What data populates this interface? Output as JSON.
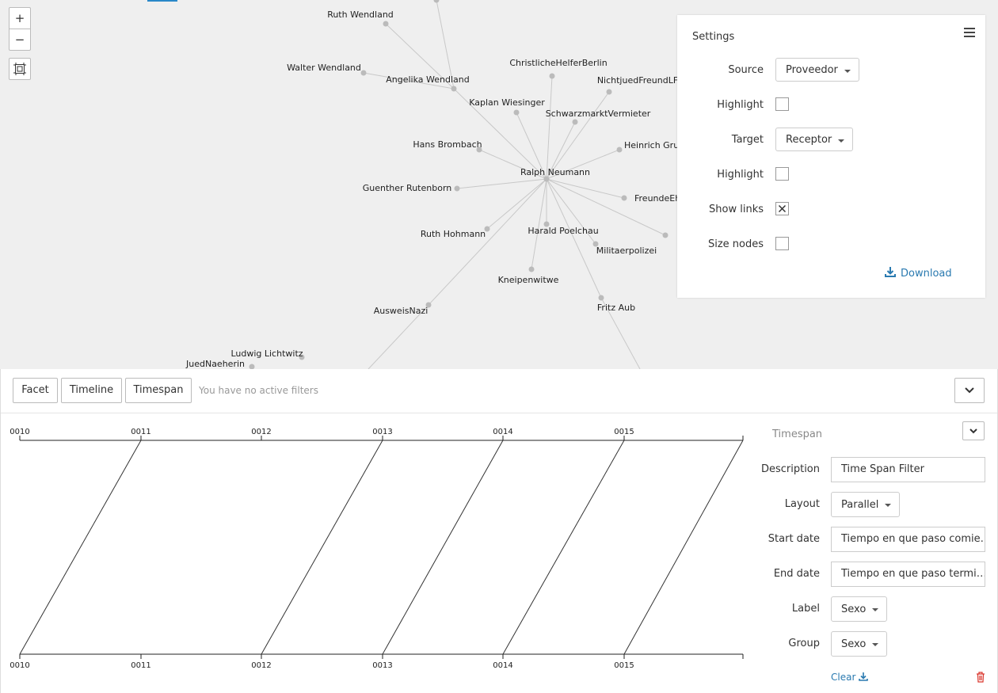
{
  "graph": {
    "nodes": [
      "Ruth Wendland",
      "Walter Wendland",
      "Angelika Wendland",
      "ChristlicheHelferBerlin",
      "NichtjuedFreundLF",
      "Kaplan Wiesinger",
      "SchwarzmarktVermieter",
      "Hans Brombach",
      "Heinrich Gruen",
      "Ralph Neumann",
      "Guenther Rutenborn",
      "FreundeEhepaarWohnung",
      "Ruth Hohmann",
      "Harald Poelchau",
      "Militaerpolizei",
      "Kneipenwitwe",
      "Fritz Aub",
      "AusweisNazi",
      "Ludwig Lichtwitz",
      "JuedNaeherin"
    ]
  },
  "zoom": {
    "in": "+",
    "out": "−"
  },
  "settings": {
    "title": "Settings",
    "rows": [
      {
        "label": "Source",
        "kind": "select",
        "value": "Proveedor"
      },
      {
        "label": "Highlight",
        "kind": "checkbox",
        "checked": false
      },
      {
        "label": "Target",
        "kind": "select",
        "value": "Receptor"
      },
      {
        "label": "Highlight",
        "kind": "checkbox",
        "checked": false
      },
      {
        "label": "Show links",
        "kind": "checkbox",
        "checked": true
      },
      {
        "label": "Size nodes",
        "kind": "checkbox",
        "checked": false
      }
    ],
    "download": "Download"
  },
  "filter_bar": {
    "buttons": [
      "Facet",
      "Timeline",
      "Timespan"
    ],
    "status": "You have no active filters"
  },
  "timeline": {
    "top_ticks": [
      "0010",
      "0011",
      "0012",
      "0013",
      "0014",
      "0015"
    ],
    "bottom_ticks": [
      "0010",
      "0011",
      "0012",
      "0013",
      "0014",
      "0015"
    ]
  },
  "timespan_panel": {
    "title": "Timespan",
    "fields": [
      {
        "label": "Description",
        "kind": "input",
        "value": "Time Span Filter"
      },
      {
        "label": "Layout",
        "kind": "select",
        "value": "Parallel"
      },
      {
        "label": "Start date",
        "kind": "input",
        "value": "Tiempo en que paso comie…"
      },
      {
        "label": "End date",
        "kind": "input",
        "value": "Tiempo en que paso termi…"
      },
      {
        "label": "Label",
        "kind": "select",
        "value": "Sexo"
      },
      {
        "label": "Group",
        "kind": "select",
        "value": "Sexo"
      }
    ],
    "clear": "Clear"
  }
}
